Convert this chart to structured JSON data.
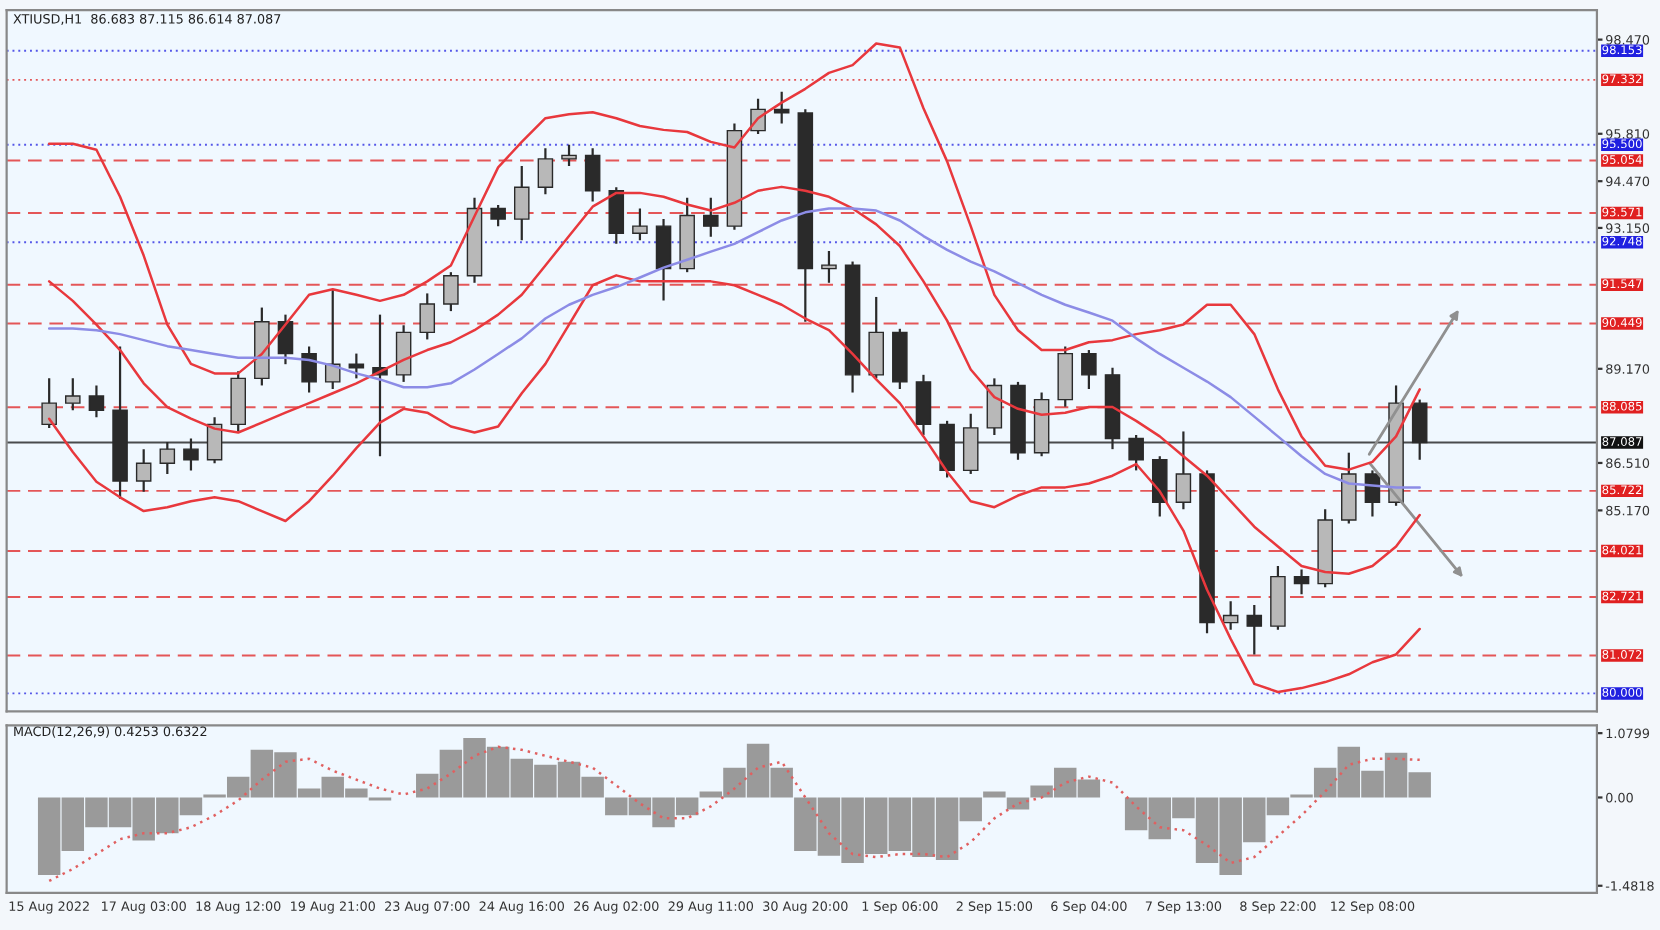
{
  "chart_data": [
    {
      "type": "candlestick",
      "title": "XTIUSD,H1  86.683 87.115 86.614 87.087",
      "color": "#2a2a2a",
      "tick_labels": "y",
      "categories": [
        null,
        null,
        null,
        null,
        null,
        null,
        null,
        null,
        null,
        null,
        null,
        null,
        null,
        null,
        null,
        null,
        null,
        null,
        null,
        null,
        null,
        null,
        null,
        null,
        null,
        null,
        null,
        null,
        null,
        null,
        null,
        null,
        null,
        null,
        null,
        null,
        null,
        null,
        null,
        null,
        null,
        null,
        null,
        null,
        null,
        null,
        null,
        null,
        null,
        null,
        null,
        null,
        null,
        null,
        null,
        null,
        null,
        null,
        null
      ],
      "ohlc": [
        [
          87.6,
          88.9,
          87.5,
          88.2
        ],
        [
          88.2,
          88.9,
          88.0,
          88.4
        ],
        [
          88.4,
          88.7,
          87.8,
          88.0
        ],
        [
          88.0,
          89.8,
          85.5,
          86.0
        ],
        [
          86.0,
          86.9,
          85.7,
          86.5
        ],
        [
          86.5,
          87.1,
          86.2,
          86.9
        ],
        [
          86.9,
          87.2,
          86.3,
          86.6
        ],
        [
          86.6,
          87.8,
          86.5,
          87.6
        ],
        [
          87.6,
          89.1,
          87.4,
          88.9
        ],
        [
          88.9,
          90.9,
          88.7,
          90.5
        ],
        [
          90.5,
          90.7,
          89.3,
          89.6
        ],
        [
          89.6,
          89.8,
          88.5,
          88.8
        ],
        [
          88.8,
          91.4,
          88.6,
          89.3
        ],
        [
          89.3,
          89.6,
          88.9,
          89.2
        ],
        [
          89.2,
          90.7,
          86.7,
          89.0
        ],
        [
          89.0,
          90.4,
          88.8,
          90.2
        ],
        [
          90.2,
          91.3,
          90.0,
          91.0
        ],
        [
          91.0,
          91.9,
          90.8,
          91.8
        ],
        [
          91.8,
          94.0,
          91.6,
          93.7
        ],
        [
          93.7,
          93.8,
          93.2,
          93.4
        ],
        [
          93.4,
          94.9,
          92.8,
          94.3
        ],
        [
          94.3,
          95.4,
          94.1,
          95.1
        ],
        [
          95.1,
          95.5,
          94.9,
          95.2
        ],
        [
          95.2,
          95.4,
          93.9,
          94.2
        ],
        [
          94.2,
          94.3,
          92.7,
          93.0
        ],
        [
          93.0,
          93.7,
          92.8,
          93.2
        ],
        [
          93.2,
          93.4,
          91.1,
          92.0
        ],
        [
          92.0,
          94.0,
          91.9,
          93.5
        ],
        [
          93.5,
          94.0,
          92.9,
          93.2
        ],
        [
          93.2,
          96.1,
          93.1,
          95.9
        ],
        [
          95.9,
          96.8,
          95.8,
          96.5
        ],
        [
          96.5,
          97.0,
          96.1,
          96.4
        ],
        [
          96.4,
          96.5,
          90.5,
          92.0
        ],
        [
          92.0,
          92.5,
          91.6,
          92.1
        ],
        [
          92.1,
          92.2,
          88.5,
          89.0
        ],
        [
          89.0,
          91.2,
          88.9,
          90.2
        ],
        [
          90.2,
          90.3,
          88.6,
          88.8
        ],
        [
          88.8,
          89.0,
          87.3,
          87.6
        ],
        [
          87.6,
          87.7,
          86.1,
          86.3
        ],
        [
          86.3,
          87.9,
          86.2,
          87.5
        ],
        [
          87.5,
          88.9,
          87.3,
          88.7
        ],
        [
          88.7,
          88.8,
          86.6,
          86.8
        ],
        [
          86.8,
          88.5,
          86.7,
          88.3
        ],
        [
          88.3,
          89.8,
          88.1,
          89.6
        ],
        [
          89.6,
          89.7,
          88.6,
          89.0
        ],
        [
          89.0,
          89.2,
          86.9,
          87.2
        ],
        [
          87.2,
          87.3,
          86.3,
          86.6
        ],
        [
          86.6,
          86.7,
          85.0,
          85.4
        ],
        [
          85.4,
          87.4,
          85.2,
          86.2
        ],
        [
          86.2,
          86.3,
          81.7,
          82.0
        ],
        [
          82.0,
          82.6,
          81.8,
          82.2
        ],
        [
          82.2,
          82.5,
          81.1,
          81.9
        ],
        [
          81.9,
          83.6,
          81.8,
          83.3
        ],
        [
          83.3,
          83.5,
          82.8,
          83.1
        ],
        [
          83.1,
          85.2,
          83.0,
          84.9
        ],
        [
          84.9,
          86.8,
          84.8,
          86.2
        ],
        [
          86.2,
          86.3,
          85.0,
          85.4
        ],
        [
          85.4,
          88.7,
          85.3,
          88.2
        ],
        [
          88.2,
          88.3,
          86.6,
          87.087
        ]
      ],
      "series": [
        {
          "type": "line",
          "color": "#e8383d",
          "values": [
            95.53,
            95.53,
            95.36,
            94.03,
            92.37,
            90.42,
            89.31,
            89.04,
            89.04,
            89.59,
            90.42,
            91.26,
            91.42,
            91.26,
            91.09,
            91.26,
            91.64,
            92.09,
            93.48,
            94.86,
            95.58,
            96.25,
            96.36,
            96.42,
            96.25,
            96.03,
            95.92,
            95.86,
            95.58,
            95.42,
            96.25,
            96.69,
            97.08,
            97.53,
            97.75,
            98.36,
            98.25,
            96.53,
            95.03,
            93.2,
            91.26,
            90.26,
            89.7,
            89.7,
            89.92,
            89.98,
            90.15,
            90.26,
            90.42,
            90.98,
            90.98,
            90.15,
            88.59,
            87.26,
            86.43,
            86.32,
            86.54,
            87.26,
            88.59
          ]
        },
        {
          "type": "line",
          "color": "#e8383d",
          "values": [
            91.64,
            91.09,
            90.42,
            89.7,
            88.76,
            88.09,
            87.76,
            87.48,
            87.37,
            87.65,
            87.93,
            88.2,
            88.48,
            88.76,
            89.09,
            89.42,
            89.7,
            89.92,
            90.26,
            90.7,
            91.26,
            92.09,
            92.92,
            93.75,
            94.14,
            94.14,
            94.03,
            93.81,
            93.64,
            93.86,
            94.2,
            94.31,
            94.2,
            94.03,
            93.7,
            93.25,
            92.64,
            91.64,
            90.53,
            89.15,
            88.37,
            88.04,
            87.87,
            87.93,
            88.09,
            88.09,
            87.7,
            87.26,
            86.7,
            86.15,
            85.43,
            84.71,
            84.15,
            83.6,
            83.43,
            83.38,
            83.6,
            84.15,
            85.04
          ]
        },
        {
          "type": "line",
          "color": "#e8383d",
          "values": [
            87.76,
            86.82,
            85.98,
            85.54,
            85.15,
            85.26,
            85.43,
            85.54,
            85.43,
            85.15,
            84.87,
            85.43,
            86.15,
            86.93,
            87.65,
            88.04,
            87.93,
            87.54,
            87.37,
            87.54,
            88.48,
            89.31,
            90.42,
            91.53,
            91.81,
            91.64,
            91.64,
            91.64,
            91.64,
            91.53,
            91.26,
            90.98,
            90.59,
            90.26,
            89.59,
            88.87,
            88.2,
            87.26,
            86.26,
            85.43,
            85.26,
            85.59,
            85.82,
            85.82,
            85.93,
            86.15,
            86.48,
            85.71,
            84.6,
            82.93,
            81.54,
            80.27,
            80.04,
            80.15,
            80.32,
            80.54,
            80.88,
            81.1,
            81.82
          ]
        },
        {
          "type": "line",
          "color": "#8c8ce6",
          "values": [
            90.31,
            90.31,
            90.26,
            90.15,
            89.98,
            89.81,
            89.7,
            89.59,
            89.48,
            89.48,
            89.48,
            89.42,
            89.26,
            89.04,
            88.87,
            88.65,
            88.65,
            88.76,
            89.15,
            89.59,
            90.03,
            90.59,
            90.98,
            91.26,
            91.48,
            91.75,
            92.03,
            92.25,
            92.48,
            92.7,
            93.03,
            93.36,
            93.59,
            93.7,
            93.7,
            93.64,
            93.36,
            92.92,
            92.53,
            92.2,
            91.92,
            91.59,
            91.26,
            90.98,
            90.76,
            90.53,
            90.03,
            89.59,
            89.2,
            88.81,
            88.37,
            87.82,
            87.26,
            86.7,
            86.2,
            85.93,
            85.87,
            85.82,
            85.82
          ]
        }
      ],
      "ylim": [
        79.49,
        99.3
      ],
      "yticks": [
        {
          "value": 98.47,
          "label": "98.470"
        },
        {
          "value": 95.81,
          "label": "95.810"
        },
        {
          "value": 94.47,
          "label": "94.470"
        },
        {
          "value": 93.15,
          "label": "93.150"
        },
        {
          "value": 89.17,
          "label": "89.170"
        },
        {
          "value": 86.51,
          "label": "86.510"
        },
        {
          "value": 85.17,
          "label": "85.170"
        }
      ],
      "ref_lines": [
        {
          "axis": "y",
          "value": 98.153,
          "label": "98.153",
          "color": "#2020e0",
          "line_style": "dotted"
        },
        {
          "axis": "y",
          "value": 97.332,
          "label": "97.332",
          "color": "#e02020",
          "line_style": "dotted"
        },
        {
          "axis": "y",
          "value": 95.5,
          "label": "95.500",
          "color": "#2020e0",
          "line_style": "dotted"
        },
        {
          "axis": "y",
          "value": 95.054,
          "label": "95.054",
          "color": "#e02020",
          "line_style": "dashed"
        },
        {
          "axis": "y",
          "value": 93.571,
          "label": "93.571",
          "color": "#e02020",
          "line_style": "dashed"
        },
        {
          "axis": "y",
          "value": 92.748,
          "label": "92.748",
          "color": "#2020e0",
          "line_style": "dotted"
        },
        {
          "axis": "y",
          "value": 91.547,
          "label": "91.547",
          "color": "#e02020",
          "line_style": "dashed"
        },
        {
          "axis": "y",
          "value": 90.449,
          "label": "90.449",
          "color": "#e02020",
          "line_style": "dashed"
        },
        {
          "axis": "y",
          "value": 88.085,
          "label": "88.085",
          "color": "#e02020",
          "line_style": "dashed"
        },
        {
          "axis": "y",
          "value": 87.087,
          "label": "87.087",
          "color": "#111111",
          "line_style": "solid"
        },
        {
          "axis": "y",
          "value": 85.722,
          "label": "85.722",
          "color": "#e02020",
          "line_style": "dashed"
        },
        {
          "axis": "y",
          "value": 84.021,
          "label": "84.021",
          "color": "#e02020",
          "line_style": "dashed"
        },
        {
          "axis": "y",
          "value": 82.721,
          "label": "82.721",
          "color": "#e02020",
          "line_style": "dashed"
        },
        {
          "axis": "y",
          "value": 81.072,
          "label": "81.072",
          "color": "#e02020",
          "line_style": "dashed"
        },
        {
          "axis": "y",
          "value": 80.0,
          "label": "80.000",
          "color": "#2020e0",
          "line_style": "dotted"
        }
      ]
    },
    {
      "type": "bar",
      "title": "MACD(12,26,9) 0.4253 0.6322",
      "categories": [
        "15 Aug 2022",
        null,
        null,
        null,
        "17 Aug 03:00",
        null,
        null,
        null,
        "18 Aug 12:00",
        null,
        null,
        null,
        "19 Aug 21:00",
        null,
        null,
        null,
        "23 Aug 07:00",
        null,
        null,
        null,
        "24 Aug 16:00",
        null,
        null,
        null,
        "26 Aug 02:00",
        null,
        null,
        null,
        "29 Aug 11:00",
        null,
        null,
        null,
        "30 Aug 20:00",
        null,
        null,
        null,
        "1 Sep 06:00",
        null,
        null,
        null,
        "2 Sep 15:00",
        null,
        null,
        null,
        "6 Sep 04:00",
        null,
        null,
        null,
        "7 Sep 13:00",
        null,
        null,
        null,
        "8 Sep 22:00",
        null,
        null,
        null,
        "12 Sep 08:00",
        null,
        null
      ],
      "series": [
        {
          "type": "bar",
          "color": "#9a9a9a",
          "values": [
            -1.3,
            -0.9,
            -0.5,
            -0.5,
            -0.72,
            -0.6,
            -0.3,
            0.05,
            0.35,
            0.8,
            0.76,
            0.15,
            0.35,
            0.15,
            -0.05,
            0.0,
            0.4,
            0.8,
            1.0,
            0.85,
            0.65,
            0.55,
            0.6,
            0.35,
            -0.3,
            -0.3,
            -0.5,
            -0.3,
            0.1,
            0.5,
            0.9,
            0.5,
            -0.9,
            -0.98,
            -1.1,
            -0.95,
            -0.9,
            -1.0,
            -1.05,
            -0.4,
            0.1,
            -0.2,
            0.2,
            0.5,
            0.3,
            0.0,
            -0.55,
            -0.7,
            -0.35,
            -1.1,
            -1.3,
            -0.75,
            -0.3,
            0.05,
            0.5,
            0.85,
            0.45,
            0.75,
            0.4253
          ]
        },
        {
          "type": "line",
          "color": "#e06060",
          "line_style": "dotted",
          "values": [
            -1.4,
            -1.2,
            -0.95,
            -0.7,
            -0.6,
            -0.6,
            -0.5,
            -0.3,
            -0.05,
            0.3,
            0.6,
            0.65,
            0.45,
            0.3,
            0.15,
            0.05,
            0.15,
            0.4,
            0.7,
            0.85,
            0.8,
            0.7,
            0.6,
            0.5,
            0.2,
            -0.1,
            -0.35,
            -0.35,
            -0.15,
            0.15,
            0.5,
            0.6,
            0.0,
            -0.6,
            -0.95,
            -1.0,
            -0.95,
            -0.95,
            -1.0,
            -0.75,
            -0.35,
            -0.1,
            0.0,
            0.25,
            0.35,
            0.25,
            -0.15,
            -0.5,
            -0.55,
            -0.8,
            -1.1,
            -1.0,
            -0.65,
            -0.3,
            0.1,
            0.55,
            0.65,
            0.65,
            0.6322
          ]
        }
      ],
      "ylim": [
        -1.6,
        1.21
      ],
      "yticks": [
        {
          "value": 1.0799,
          "label": "1.0799"
        },
        {
          "value": 0,
          "label": "0.00"
        },
        {
          "value": -1.4818,
          "label": "-1.4818"
        }
      ]
    }
  ]
}
